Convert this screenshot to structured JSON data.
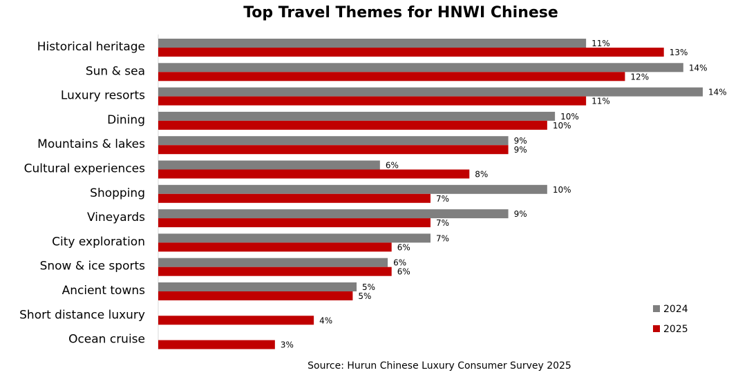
{
  "chart_data": {
    "type": "bar",
    "orientation": "horizontal",
    "title": "Top Travel Themes for HNWI Chinese",
    "source": "Source: Hurun Chinese Luxury Consumer Survey 2025",
    "categories": [
      "Historical heritage",
      "Sun & sea",
      "Luxury resorts",
      "Dining",
      "Mountains & lakes",
      "Cultural experiences",
      "Shopping",
      "Vineyards",
      "City exploration",
      "Snow & ice sports",
      "Ancient towns",
      "Short distance luxury",
      "Ocean cruise"
    ],
    "series": [
      {
        "name": "2024",
        "color": "#7f7f7f",
        "values": [
          11,
          13.5,
          14,
          10.2,
          9,
          5.7,
          10,
          9,
          7,
          5.9,
          5.1,
          null,
          null
        ],
        "value_labels": [
          "11%",
          "14%",
          "14%",
          "10%",
          "9%",
          "6%",
          "10%",
          "9%",
          "7%",
          "6%",
          "5%",
          null,
          null
        ]
      },
      {
        "name": "2025",
        "color": "#c00000",
        "values": [
          13,
          12,
          11,
          10,
          9,
          8,
          7,
          7,
          6,
          6,
          5,
          4,
          3
        ],
        "value_labels": [
          "13%",
          "12%",
          "11%",
          "10%",
          "9%",
          "8%",
          "7%",
          "7%",
          "6%",
          "6%",
          "5%",
          "4%",
          "3%"
        ]
      }
    ],
    "legend": "bottom-right"
  }
}
